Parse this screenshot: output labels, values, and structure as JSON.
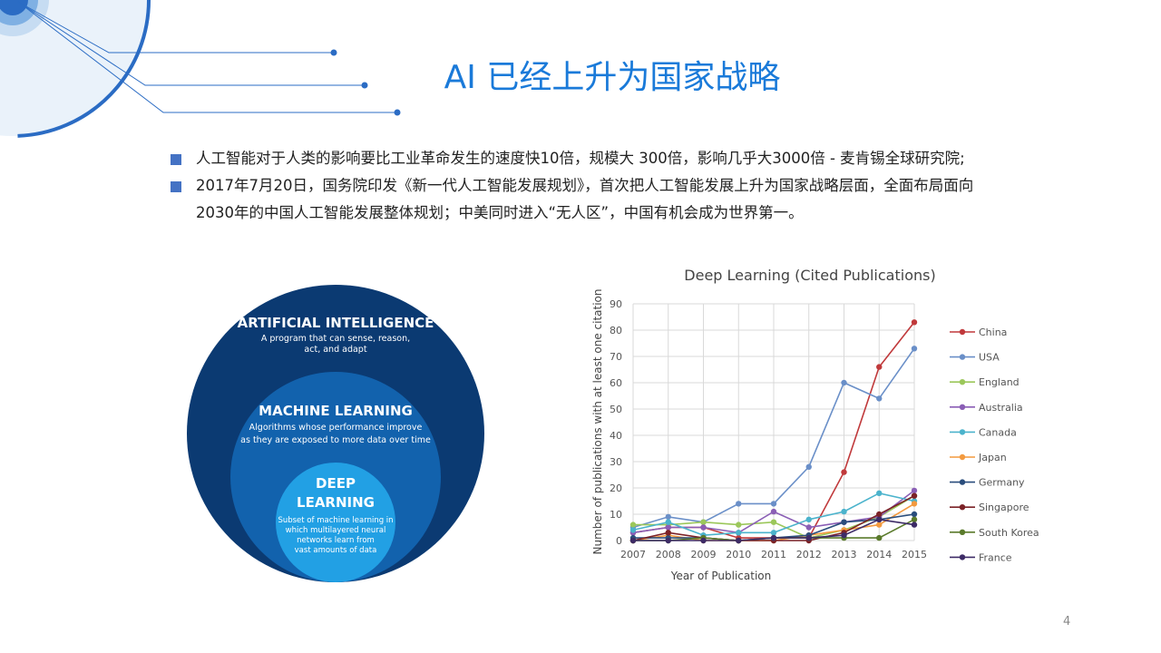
{
  "slide": {
    "title": "AI 已经上升为国家战略",
    "bullets": [
      {
        "text": "人工智能对于人类的影响要比工业革命发生的速度快10倍，规模大 300倍，影响几乎大3000倍 - 麦肯锡全球研究院;"
      },
      {
        "text": "2017年7月20日，国务院印发《新一代人工智能发展规划》，首次把人工智能发展上升为国家战略层面，全面布局面向",
        "text2": "2030年的中国人工智能发展整体规划；中美同时进入“无人区”，中国有机会成为世界第一。"
      }
    ],
    "page_number": "4"
  },
  "ai_diagram": {
    "ai": {
      "title": "ARTIFICIAL INTELLIGENCE",
      "line1": "A program that can sense, reason,",
      "line2": "act, and adapt"
    },
    "ml": {
      "title": "MACHINE LEARNING",
      "line1": "Algorithms whose performance improve",
      "line2": "as they are exposed to more data over time"
    },
    "dl": {
      "title1": "DEEP",
      "title2": "LEARNING",
      "line1": "Subset of machine learning in",
      "line2": "which multilayered neural",
      "line3": "networks learn from",
      "line4": "vast amounts of data"
    },
    "colors": {
      "outer": "#0b3a72",
      "middle": "#1262ad",
      "inner": "#22a0e4"
    }
  },
  "chart_data": {
    "type": "line",
    "title": "Deep Learning (Cited Publications)",
    "xlabel": "Year of Publication",
    "ylabel": "Number of publications with at least one citation",
    "x": [
      "2007",
      "2008",
      "2009",
      "2010",
      "2011",
      "2012",
      "2013",
      "2014",
      "2015"
    ],
    "ylim": [
      0,
      90
    ],
    "yticks": [
      0,
      10,
      20,
      30,
      40,
      50,
      60,
      70,
      80,
      90
    ],
    "grid": true,
    "legend_position": "right",
    "series": [
      {
        "name": "China",
        "color": "#c0393b",
        "values": [
          3,
          5,
          5,
          1,
          1,
          1,
          26,
          66,
          83
        ]
      },
      {
        "name": "USA",
        "color": "#6a8fc8",
        "values": [
          5,
          9,
          7,
          14,
          14,
          28,
          60,
          54,
          73
        ]
      },
      {
        "name": "England",
        "color": "#9bc75a",
        "values": [
          6,
          6,
          7,
          6,
          7,
          1,
          4,
          9,
          17
        ]
      },
      {
        "name": "Australia",
        "color": "#8a5eb5",
        "values": [
          3,
          5,
          5,
          3,
          11,
          5,
          7,
          9,
          19
        ]
      },
      {
        "name": "Canada",
        "color": "#4bb3cc",
        "values": [
          4,
          7,
          2,
          3,
          3,
          8,
          11,
          18,
          15
        ]
      },
      {
        "name": "Japan",
        "color": "#f39a3f",
        "values": [
          0,
          2,
          0,
          0,
          0,
          2,
          4,
          6,
          14
        ]
      },
      {
        "name": "Germany",
        "color": "#2a4d7c",
        "values": [
          1,
          1,
          1,
          0,
          1,
          2,
          7,
          8,
          10
        ]
      },
      {
        "name": "Singapore",
        "color": "#7b2227",
        "values": [
          0,
          3,
          1,
          0,
          0,
          0,
          3,
          10,
          17
        ]
      },
      {
        "name": "South Korea",
        "color": "#5a7a2b",
        "values": [
          0,
          0,
          1,
          0,
          1,
          1,
          1,
          1,
          8
        ]
      },
      {
        "name": "France",
        "color": "#3d2b66",
        "values": [
          0,
          0,
          0,
          0,
          1,
          1,
          2,
          8,
          6
        ]
      }
    ]
  }
}
